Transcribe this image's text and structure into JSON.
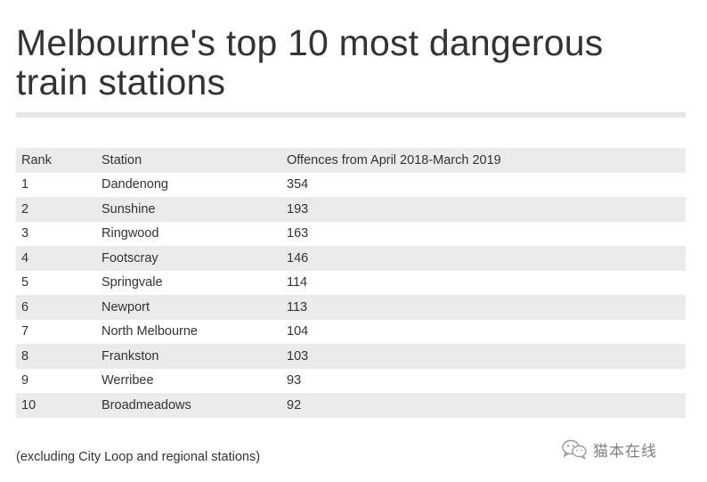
{
  "title": "Melbourne's top 10 most dangerous train stations",
  "chart_data": {
    "type": "table",
    "title": "Melbourne's top 10 most dangerous train stations",
    "columns": [
      "Rank",
      "Station",
      "Offences from April 2018-March 2019"
    ],
    "rows": [
      [
        "1",
        "Dandenong",
        "354"
      ],
      [
        "2",
        "Sunshine",
        "193"
      ],
      [
        "3",
        "Ringwood",
        "163"
      ],
      [
        "4",
        "Footscray",
        "146"
      ],
      [
        "5",
        "Springvale",
        "114"
      ],
      [
        "6",
        "Newport",
        "113"
      ],
      [
        "7",
        "North Melbourne",
        "104"
      ],
      [
        "8",
        "Frankston",
        "103"
      ],
      [
        "9",
        "Werribee",
        "93"
      ],
      [
        "10",
        "Broadmeadows",
        "92"
      ]
    ]
  },
  "footnote": "(excluding City Loop and regional stations)",
  "watermark": {
    "text": "猫本在线",
    "icon": "wechat-icon"
  },
  "colors": {
    "text": "#333333",
    "stripe": "#ebebeb",
    "rule": "#e6e6e6"
  }
}
